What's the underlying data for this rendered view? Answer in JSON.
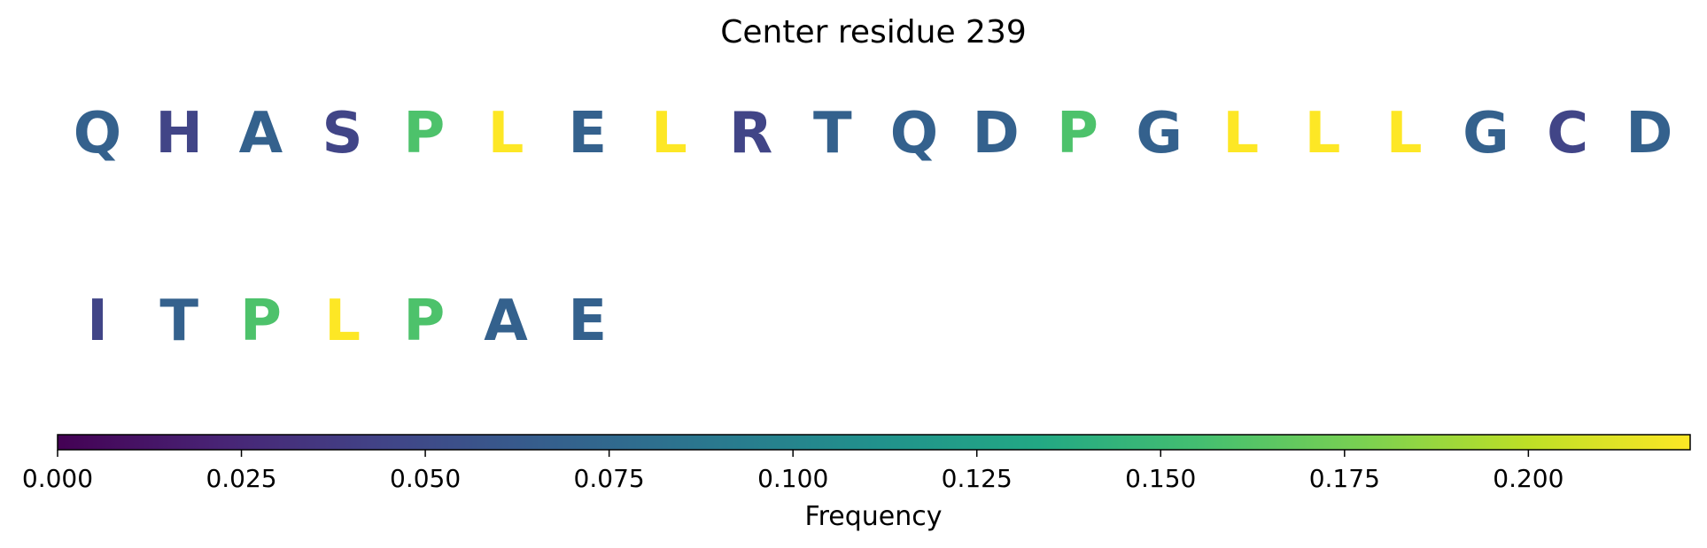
{
  "chart_data": {
    "type": "heatmap",
    "title": "Center residue 239",
    "residues": [
      {
        "letter": "Q",
        "frequency": 0.068
      },
      {
        "letter": "H",
        "frequency": 0.045
      },
      {
        "letter": "A",
        "frequency": 0.068
      },
      {
        "letter": "S",
        "frequency": 0.045
      },
      {
        "letter": "P",
        "frequency": 0.159
      },
      {
        "letter": "L",
        "frequency": 0.222
      },
      {
        "letter": "E",
        "frequency": 0.068
      },
      {
        "letter": "L",
        "frequency": 0.222
      },
      {
        "letter": "R",
        "frequency": 0.045
      },
      {
        "letter": "T",
        "frequency": 0.068
      },
      {
        "letter": "Q",
        "frequency": 0.068
      },
      {
        "letter": "D",
        "frequency": 0.068
      },
      {
        "letter": "P",
        "frequency": 0.159
      },
      {
        "letter": "G",
        "frequency": 0.068
      },
      {
        "letter": "L",
        "frequency": 0.222
      },
      {
        "letter": "L",
        "frequency": 0.222
      },
      {
        "letter": "L",
        "frequency": 0.222
      },
      {
        "letter": "G",
        "frequency": 0.068
      },
      {
        "letter": "C",
        "frequency": 0.045
      },
      {
        "letter": "D",
        "frequency": 0.068
      },
      {
        "letter": "I",
        "frequency": 0.045
      },
      {
        "letter": "T",
        "frequency": 0.068
      },
      {
        "letter": "P",
        "frequency": 0.159
      },
      {
        "letter": "L",
        "frequency": 0.222
      },
      {
        "letter": "P",
        "frequency": 0.159
      },
      {
        "letter": "A",
        "frequency": 0.068
      },
      {
        "letter": "E",
        "frequency": 0.068
      }
    ],
    "colorbar": {
      "label": "Frequency",
      "range": [
        0,
        0.222
      ],
      "colormap": "viridis",
      "ticks": [
        {
          "value": 0.0,
          "label": "0.000"
        },
        {
          "value": 0.025,
          "label": "0.025"
        },
        {
          "value": 0.05,
          "label": "0.050"
        },
        {
          "value": 0.075,
          "label": "0.075"
        },
        {
          "value": 0.1,
          "label": "0.100"
        },
        {
          "value": 0.125,
          "label": "0.125"
        },
        {
          "value": 0.15,
          "label": "0.150"
        },
        {
          "value": 0.175,
          "label": "0.175"
        },
        {
          "value": 0.2,
          "label": "0.200"
        }
      ]
    }
  }
}
